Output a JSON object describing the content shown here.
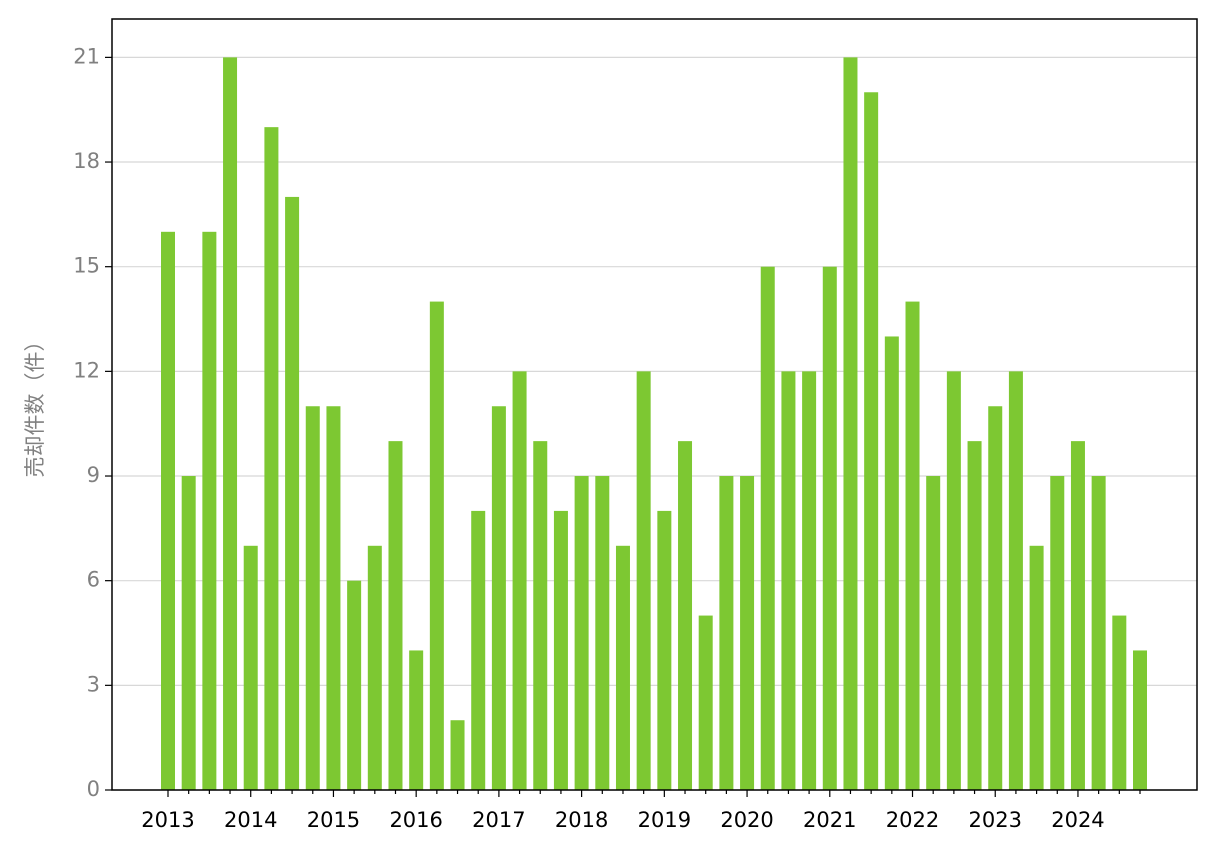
{
  "chart_data": {
    "type": "bar",
    "y_label": "売却件数（件）",
    "categories": [
      "2013",
      null,
      null,
      null,
      "2014",
      null,
      null,
      null,
      "2015",
      null,
      null,
      null,
      "2016",
      null,
      null,
      null,
      "2017",
      null,
      null,
      null,
      "2018",
      null,
      null,
      null,
      "2019",
      null,
      null,
      null,
      "2020",
      null,
      null,
      null,
      "2021",
      null,
      null,
      null,
      "2022",
      null,
      null,
      null,
      "2023",
      null,
      null,
      null,
      "2024",
      null,
      null,
      null
    ],
    "values": [
      16,
      9,
      16,
      21,
      7,
      19,
      17,
      11,
      11,
      6,
      7,
      10,
      4,
      14,
      2,
      8,
      11,
      12,
      10,
      8,
      9,
      9,
      7,
      12,
      8,
      10,
      5,
      9,
      9,
      15,
      12,
      12,
      15,
      21,
      20,
      13,
      14,
      9,
      12,
      10,
      11,
      12,
      7,
      9,
      10,
      9,
      5,
      4
    ],
    "color": "#7dc832",
    "ylim": [
      0,
      22.1
    ],
    "yticks": [
      0,
      3,
      6,
      9,
      12,
      15,
      18,
      21
    ],
    "grid": true
  }
}
